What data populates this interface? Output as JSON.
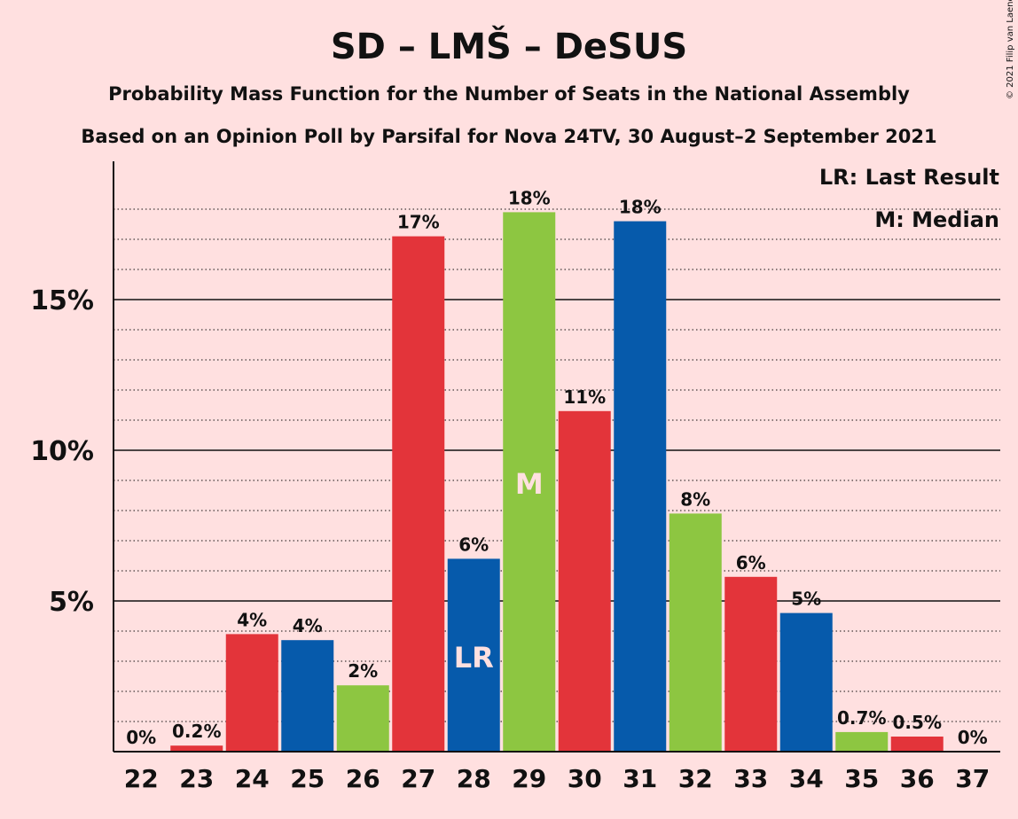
{
  "copyright": "© 2021 Filip van Laenen",
  "legend": {
    "last_result": "LR: Last Result",
    "median": "M: Median"
  },
  "colors": {
    "background": "#ffe0e0",
    "red": "#e3343a",
    "blue": "#065aab",
    "green": "#8dc641"
  },
  "chart_data": {
    "type": "bar",
    "title": "SD – LMŠ – DeSUS",
    "subtitle": "Probability Mass Function for the Number of Seats in the National Assembly",
    "subtitle2": "Based on an Opinion Poll by Parsifal for Nova 24TV, 30 August–2 September 2021",
    "categories": [
      "22",
      "23",
      "24",
      "25",
      "26",
      "27",
      "28",
      "29",
      "30",
      "31",
      "32",
      "33",
      "34",
      "35",
      "36",
      "37"
    ],
    "values": [
      0,
      0.2,
      3.9,
      3.7,
      2.2,
      17.1,
      6.4,
      17.9,
      11.3,
      17.6,
      7.9,
      5.8,
      4.6,
      0.65,
      0.5,
      0
    ],
    "data_labels": [
      "0%",
      "0.2%",
      "4%",
      "4%",
      "2%",
      "17%",
      "6%",
      "18%",
      "11%",
      "18%",
      "8%",
      "6%",
      "5%",
      "0.7%",
      "0.5%",
      "0%"
    ],
    "bar_colors": [
      "red",
      "red",
      "red",
      "blue",
      "green",
      "red",
      "blue",
      "green",
      "red",
      "blue",
      "green",
      "red",
      "blue",
      "green",
      "red",
      "red"
    ],
    "bar_annotations": {
      "28": "LR",
      "29": "M"
    },
    "y_ticks": [
      5,
      10,
      15
    ],
    "y_tick_labels": [
      "5%",
      "10%",
      "15%"
    ],
    "ylim": [
      0,
      19.5
    ],
    "minor_grid_step": 1,
    "grid": true,
    "legend_position": "top-right"
  }
}
